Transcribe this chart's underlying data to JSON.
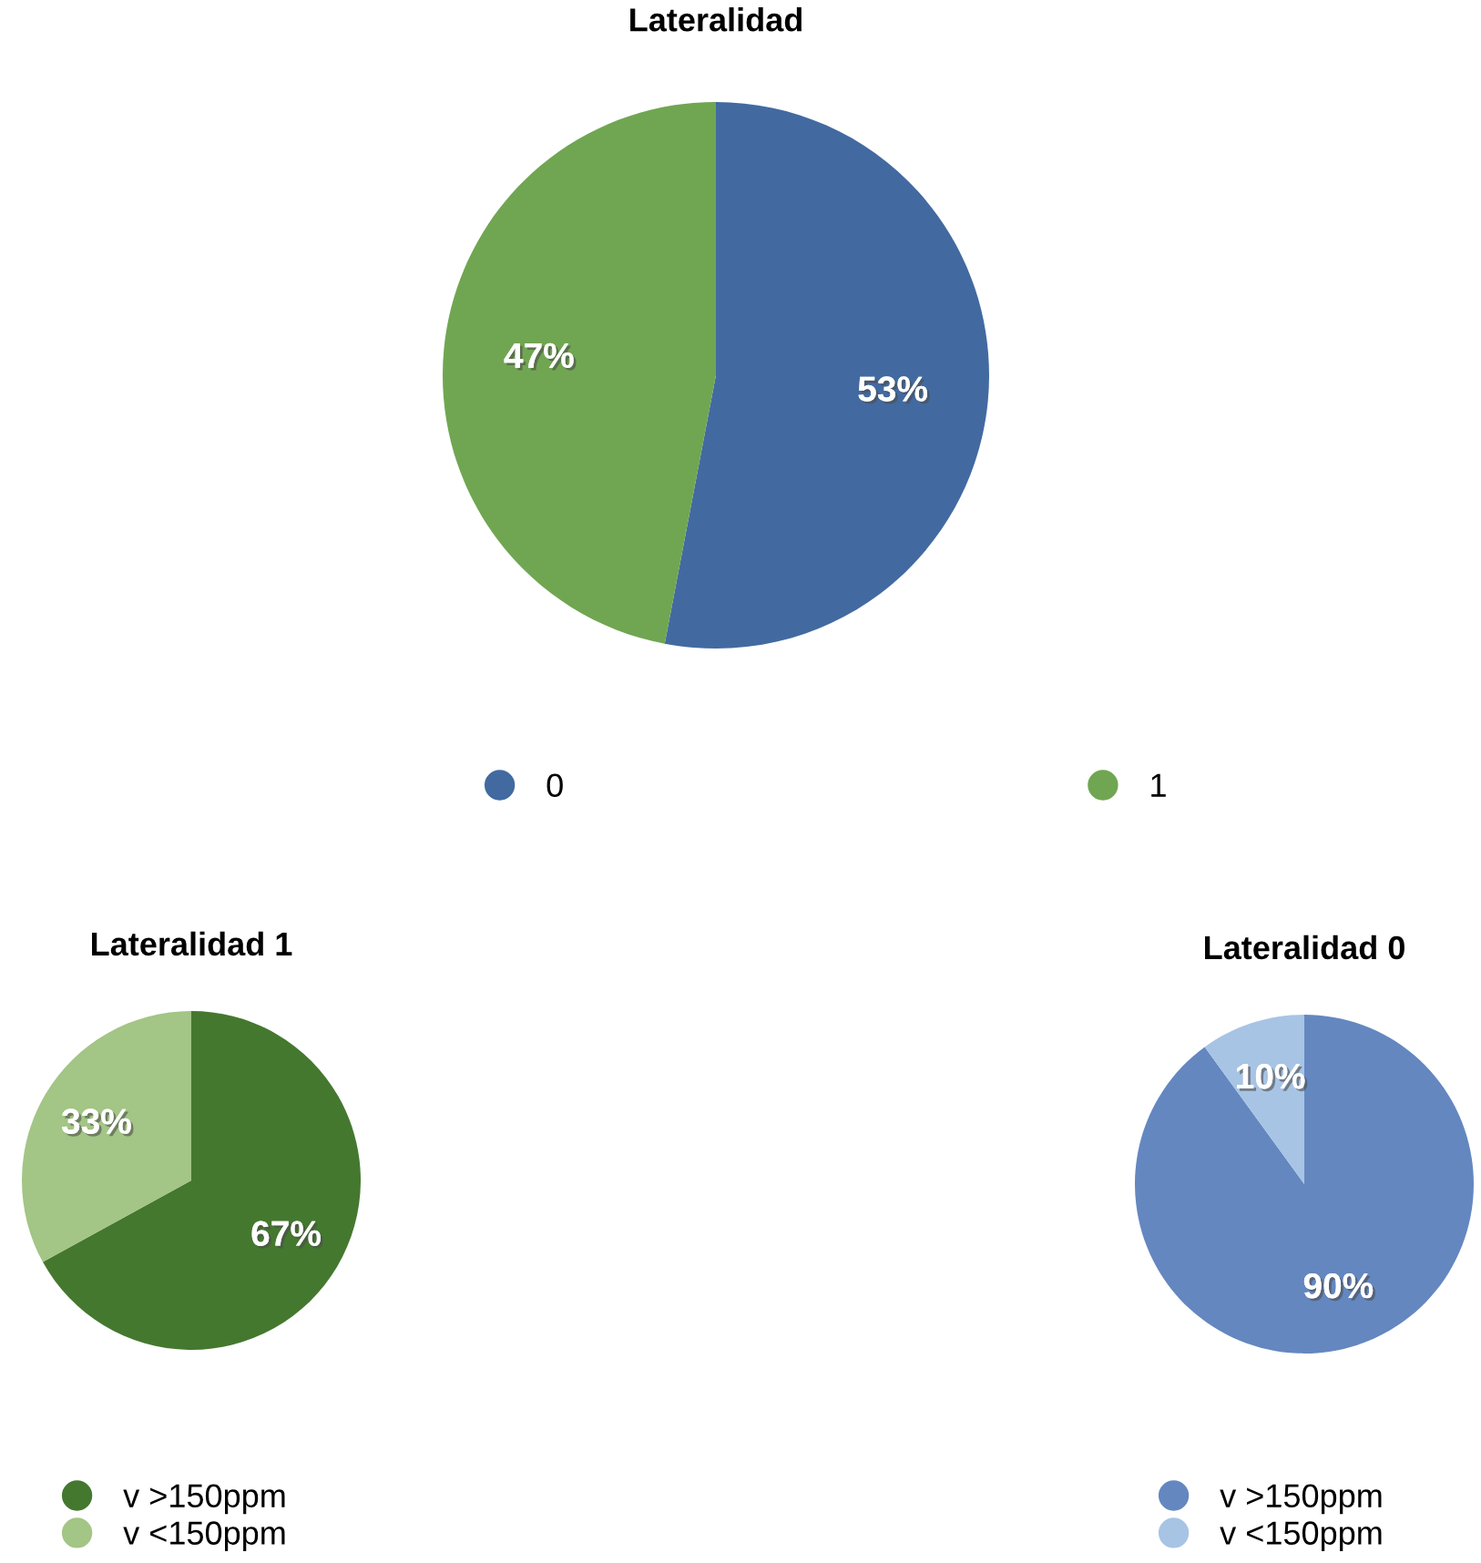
{
  "chart_data": [
    {
      "type": "pie",
      "title": "Lateralidad",
      "categories": [
        "0",
        "1"
      ],
      "values": [
        53,
        47
      ],
      "colors": [
        "#426aa0",
        "#70a651"
      ],
      "value_labels": [
        "53%",
        "47%"
      ],
      "legend": "bottom"
    },
    {
      "type": "pie",
      "title": "Lateralidad 1",
      "categories": [
        "v >150ppm",
        "v <150ppm"
      ],
      "values": [
        67,
        33
      ],
      "colors": [
        "#44782f",
        "#a3c585"
      ],
      "value_labels": [
        "67%",
        "33%"
      ],
      "legend": "bottom"
    },
    {
      "type": "pie",
      "title": "Lateralidad 0",
      "categories": [
        "v >150ppm",
        "v <150ppm"
      ],
      "values": [
        90,
        10
      ],
      "colors": [
        "#6487c0",
        "#a8c4e4"
      ],
      "value_labels": [
        "90%",
        "10%"
      ],
      "legend": "bottom"
    }
  ]
}
